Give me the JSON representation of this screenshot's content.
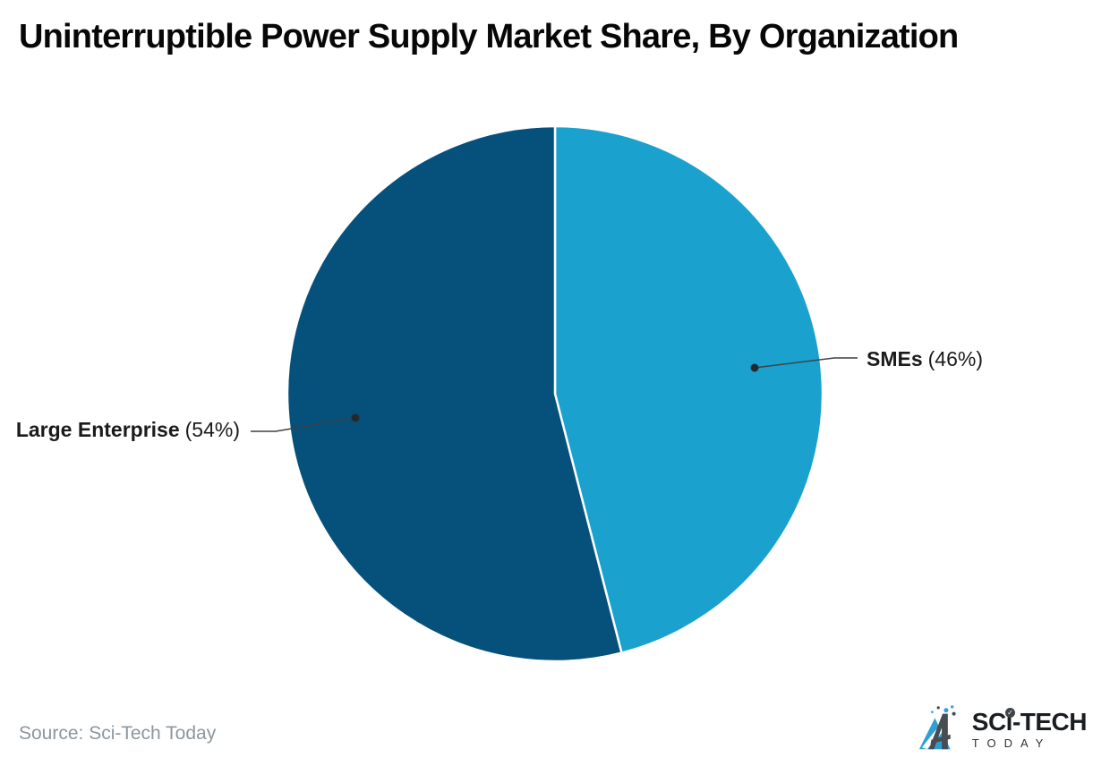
{
  "title": "Uninterruptible Power Supply Market Share, By Organization",
  "source": {
    "text": "Source: Sci-Tech Today"
  },
  "logo": {
    "brand": "SCi-TECH",
    "brand_sub": "TODAY",
    "check_icon": "✓"
  },
  "colors": {
    "sme_slice": "#1ba1cd",
    "large_enterprise_slice": "#05517c",
    "callout_line": "#3c4043",
    "callout_dot": "#26292c",
    "title_text": "#070707",
    "source_text": "#8d969d",
    "background": "#ffffff"
  },
  "chart_data": {
    "type": "pie",
    "title": "Uninterruptible Power Supply Market Share, By Organization",
    "categories": [
      "SMEs",
      "Large Enterprise"
    ],
    "values": [
      46,
      54
    ],
    "unit": "%",
    "start_angle": "12 o'clock",
    "direction": "clockwise",
    "legend_position": "callout-labels",
    "grid": false,
    "slices": [
      {
        "label": "SMEs",
        "value": 46,
        "pct_text": "(46%)",
        "color": "#1ba1cd"
      },
      {
        "label": "Large Enterprise",
        "value": 54,
        "pct_text": "(54%)",
        "color": "#05517c"
      }
    ]
  }
}
